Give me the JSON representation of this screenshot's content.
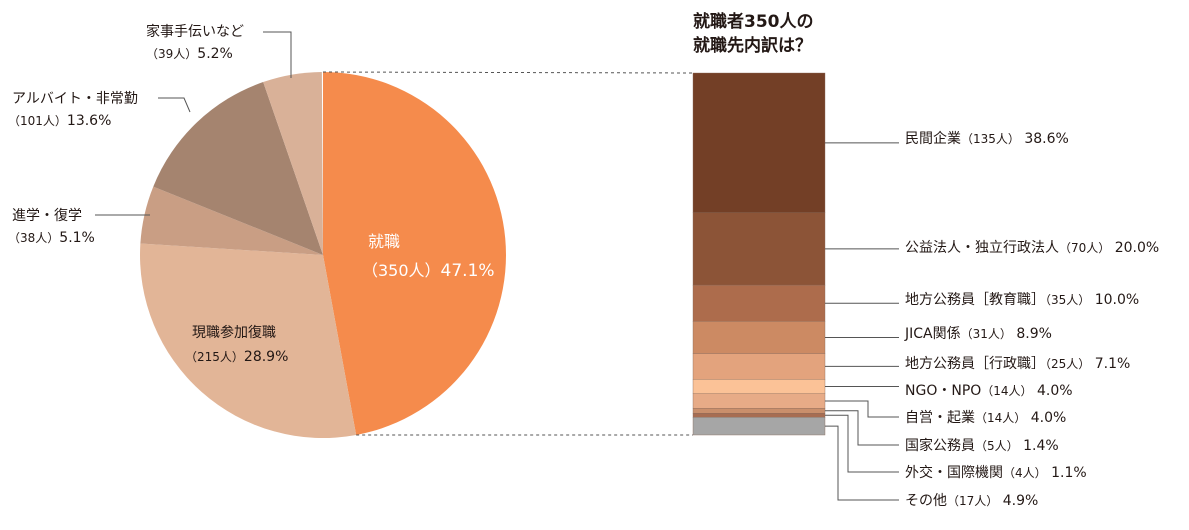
{
  "chart_data": [
    {
      "type": "pie",
      "slices": [
        {
          "label": "就職",
          "count": "（350人）",
          "percent": 47.1,
          "color": "#f58b4c"
        },
        {
          "label": "現職参加復職",
          "count": "（215人）",
          "percent": 28.9,
          "color": "#e2b597"
        },
        {
          "label": "進学・復学",
          "count": "（38人）",
          "percent": 5.1,
          "color": "#c99e84"
        },
        {
          "label": "アルバイト・非常勤",
          "count": "（101人）",
          "percent": 13.6,
          "color": "#a5846f"
        },
        {
          "label": "家事手伝いなど",
          "count": "（39人）",
          "percent": 5.2,
          "color": "#d9b198"
        }
      ]
    },
    {
      "type": "bar",
      "title": [
        "就職者350人の",
        "就職先内訳は？"
      ],
      "segments": [
        {
          "label": "民間企業",
          "count": "（135人）",
          "percent": 38.6,
          "color": "#733f26"
        },
        {
          "label": "公益法人・独立行政法人",
          "count": "（70人）",
          "percent": 20.0,
          "color": "#8c5437"
        },
        {
          "label": "地方公務員［教育職］",
          "count": "（35人）",
          "percent": 10.0,
          "color": "#ad6c4c"
        },
        {
          "label": "JICA関係",
          "count": "（31人）",
          "percent": 8.9,
          "color": "#cc8a63"
        },
        {
          "label": "地方公務員［行政職］",
          "count": "（25人）",
          "percent": 7.1,
          "color": "#e3a37d"
        },
        {
          "label": "NGO・NPO",
          "count": "（14人）",
          "percent": 4.0,
          "color": "#fbc297"
        },
        {
          "label": "自営・起業",
          "count": "（14人）",
          "percent": 4.0,
          "color": "#e7ab87"
        },
        {
          "label": "国家公務員",
          "count": "（5人）",
          "percent": 1.4,
          "color": "#c98f6c"
        },
        {
          "label": "外交・国際機関",
          "count": "（4人）",
          "percent": 1.1,
          "color": "#a76d52"
        },
        {
          "label": "その他",
          "count": "（17人）",
          "percent": 4.9,
          "color": "#a6a6a6"
        }
      ]
    }
  ]
}
